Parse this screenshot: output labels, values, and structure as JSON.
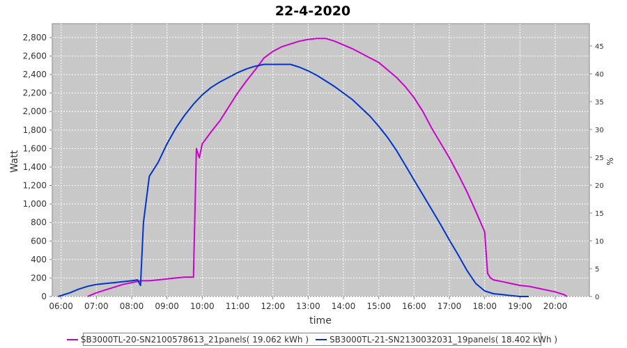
{
  "chart_data": {
    "type": "line",
    "title": "22-4-2020",
    "xlabel": "time",
    "ylabel": "Watt",
    "y2label": "%",
    "x_ticks": [
      "06:00",
      "07:00",
      "08:00",
      "09:00",
      "10:00",
      "11:00",
      "12:00",
      "13:00",
      "14:00",
      "15:00",
      "16:00",
      "17:00",
      "18:00",
      "19:00",
      "20:00"
    ],
    "xlim": [
      "05:45",
      "20:58"
    ],
    "ylim": [
      0,
      2950
    ],
    "y_ticks": [
      0,
      200,
      400,
      600,
      800,
      1000,
      1200,
      1400,
      1600,
      1800,
      2000,
      2200,
      2400,
      2600,
      2800
    ],
    "y_tick_labels": [
      "0",
      "200",
      "400",
      "600",
      "800",
      "1,000",
      "1,200",
      "1,400",
      "1,600",
      "1,800",
      "2,000",
      "2,200",
      "2,400",
      "2,600",
      "2,800"
    ],
    "y2lim": [
      0,
      49
    ],
    "y2_ticks": [
      0,
      5,
      10,
      15,
      20,
      25,
      30,
      35,
      40,
      45
    ],
    "y2_tick_labels": [
      "0",
      "5",
      "10",
      "15",
      "20",
      "25",
      "30",
      "35",
      "40",
      "45"
    ],
    "grid": true,
    "legend_position": "bottom",
    "series": [
      {
        "name": "SB3000TL-20-SN2100578613_21panels( 19.062 kWh )",
        "color": "#cc00cc",
        "x": [
          "06:45",
          "07:00",
          "07:15",
          "07:30",
          "07:45",
          "08:00",
          "08:15",
          "08:30",
          "08:45",
          "09:00",
          "09:15",
          "09:30",
          "09:45",
          "09:50",
          "09:55",
          "10:00",
          "10:15",
          "10:30",
          "10:45",
          "11:00",
          "11:15",
          "11:30",
          "11:45",
          "12:00",
          "12:15",
          "12:30",
          "12:45",
          "13:00",
          "13:15",
          "13:30",
          "13:45",
          "14:00",
          "14:15",
          "14:30",
          "14:45",
          "15:00",
          "15:15",
          "15:30",
          "15:45",
          "16:00",
          "16:15",
          "16:30",
          "16:45",
          "17:00",
          "17:15",
          "17:30",
          "17:45",
          "18:00",
          "18:05",
          "18:10",
          "18:15",
          "18:30",
          "18:45",
          "19:00",
          "19:15",
          "19:30",
          "19:45",
          "20:00",
          "20:15",
          "20:20"
        ],
        "y": [
          0,
          40,
          70,
          100,
          130,
          150,
          170,
          170,
          180,
          190,
          200,
          210,
          210,
          1600,
          1500,
          1650,
          1780,
          1900,
          2050,
          2200,
          2330,
          2450,
          2580,
          2650,
          2700,
          2730,
          2760,
          2780,
          2790,
          2790,
          2760,
          2720,
          2680,
          2630,
          2580,
          2530,
          2450,
          2370,
          2270,
          2150,
          2000,
          1820,
          1660,
          1500,
          1320,
          1130,
          920,
          700,
          250,
          200,
          180,
          160,
          140,
          120,
          110,
          90,
          70,
          50,
          20,
          0
        ]
      },
      {
        "name": "SB3000TL-21-SN2130032031_19panels( 18.402 kWh )",
        "color": "#0033cc",
        "x": [
          "05:55",
          "06:15",
          "06:30",
          "06:45",
          "07:00",
          "07:15",
          "07:30",
          "07:45",
          "08:00",
          "08:10",
          "08:15",
          "08:20",
          "08:30",
          "08:45",
          "09:00",
          "09:15",
          "09:30",
          "09:45",
          "10:00",
          "10:15",
          "10:30",
          "10:45",
          "11:00",
          "11:15",
          "11:30",
          "11:45",
          "12:00",
          "12:15",
          "12:30",
          "12:45",
          "13:00",
          "13:15",
          "13:30",
          "13:45",
          "14:00",
          "14:15",
          "14:30",
          "14:45",
          "15:00",
          "15:15",
          "15:30",
          "15:45",
          "16:00",
          "16:15",
          "16:30",
          "16:45",
          "17:00",
          "17:15",
          "17:30",
          "17:45",
          "18:00",
          "18:15",
          "18:30",
          "18:45",
          "19:00",
          "19:15"
        ],
        "y": [
          0,
          40,
          80,
          110,
          130,
          140,
          150,
          160,
          170,
          180,
          120,
          800,
          1300,
          1450,
          1650,
          1820,
          1960,
          2080,
          2180,
          2260,
          2320,
          2370,
          2420,
          2460,
          2490,
          2510,
          2510,
          2510,
          2510,
          2480,
          2440,
          2390,
          2330,
          2270,
          2200,
          2130,
          2040,
          1950,
          1840,
          1720,
          1580,
          1420,
          1260,
          1100,
          940,
          780,
          610,
          450,
          280,
          140,
          60,
          30,
          20,
          10,
          0,
          0
        ]
      }
    ]
  }
}
